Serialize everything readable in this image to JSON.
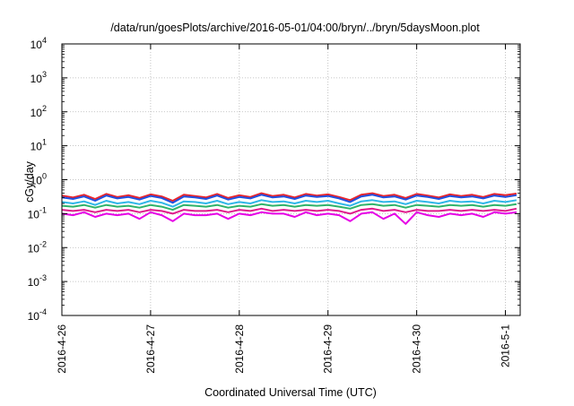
{
  "chart_data": {
    "type": "line",
    "title": "/data/run/goesPlots/archive/2016-05-01/04:00/bryn/../bryn/5daysMoon.plot",
    "xlabel": "Coordinated Universal Time (UTC)",
    "ylabel": "cGy/day",
    "yscale": "log",
    "ylim": [
      0.0001,
      10000
    ],
    "xlim": [
      "2016-04-26",
      "2016-05-01T04:00"
    ],
    "grid": true,
    "legend": "none",
    "x_ticks": [
      "2016-4-26",
      "2016-4-27",
      "2016-4-28",
      "2016-4-29",
      "2016-4-30",
      "2016-5-1"
    ],
    "y_ticks": [
      {
        "base": "10",
        "exp": "-4"
      },
      {
        "base": "10",
        "exp": "-3"
      },
      {
        "base": "10",
        "exp": "-2"
      },
      {
        "base": "10",
        "exp": "-1"
      },
      {
        "base": "10",
        "exp": "0"
      },
      {
        "base": "10",
        "exp": "1"
      },
      {
        "base": "10",
        "exp": "2"
      },
      {
        "base": "10",
        "exp": "3"
      },
      {
        "base": "10",
        "exp": "4"
      }
    ],
    "x": [
      "2016-04-26T00:00",
      "2016-04-26T03:00",
      "2016-04-26T06:00",
      "2016-04-26T09:00",
      "2016-04-26T12:00",
      "2016-04-26T15:00",
      "2016-04-26T18:00",
      "2016-04-26T21:00",
      "2016-04-27T00:00",
      "2016-04-27T03:00",
      "2016-04-27T06:00",
      "2016-04-27T09:00",
      "2016-04-27T12:00",
      "2016-04-27T15:00",
      "2016-04-27T18:00",
      "2016-04-27T21:00",
      "2016-04-28T00:00",
      "2016-04-28T03:00",
      "2016-04-28T06:00",
      "2016-04-28T09:00",
      "2016-04-28T12:00",
      "2016-04-28T15:00",
      "2016-04-28T18:00",
      "2016-04-28T21:00",
      "2016-04-29T00:00",
      "2016-04-29T03:00",
      "2016-04-29T06:00",
      "2016-04-29T09:00",
      "2016-04-29T12:00",
      "2016-04-29T15:00",
      "2016-04-29T18:00",
      "2016-04-29T21:00",
      "2016-04-30T00:00",
      "2016-04-30T03:00",
      "2016-04-30T06:00",
      "2016-04-30T09:00",
      "2016-04-30T12:00",
      "2016-04-30T15:00",
      "2016-04-30T18:00",
      "2016-04-30T21:00",
      "2016-05-01T00:00",
      "2016-05-01T03:00"
    ],
    "series": [
      {
        "color": "#e8232b",
        "values": [
          0.34,
          0.3,
          0.36,
          0.27,
          0.38,
          0.31,
          0.35,
          0.29,
          0.37,
          0.32,
          0.24,
          0.36,
          0.33,
          0.3,
          0.38,
          0.29,
          0.35,
          0.31,
          0.4,
          0.33,
          0.36,
          0.3,
          0.38,
          0.34,
          0.37,
          0.31,
          0.25,
          0.36,
          0.4,
          0.33,
          0.36,
          0.29,
          0.38,
          0.34,
          0.3,
          0.37,
          0.33,
          0.36,
          0.31,
          0.38,
          0.35,
          0.39
        ]
      },
      {
        "color": "#1f4fe0",
        "values": [
          0.3,
          0.27,
          0.32,
          0.24,
          0.34,
          0.28,
          0.31,
          0.26,
          0.33,
          0.29,
          0.21,
          0.32,
          0.3,
          0.27,
          0.34,
          0.26,
          0.31,
          0.28,
          0.36,
          0.3,
          0.32,
          0.27,
          0.34,
          0.31,
          0.33,
          0.28,
          0.22,
          0.32,
          0.36,
          0.3,
          0.32,
          0.26,
          0.34,
          0.31,
          0.27,
          0.33,
          0.3,
          0.32,
          0.28,
          0.34,
          0.31,
          0.35
        ]
      },
      {
        "color": "#2fb6e8",
        "values": [
          0.22,
          0.2,
          0.23,
          0.18,
          0.24,
          0.2,
          0.22,
          0.19,
          0.24,
          0.21,
          0.16,
          0.23,
          0.22,
          0.2,
          0.24,
          0.19,
          0.22,
          0.2,
          0.25,
          0.22,
          0.23,
          0.2,
          0.24,
          0.22,
          0.24,
          0.2,
          0.17,
          0.23,
          0.25,
          0.22,
          0.23,
          0.19,
          0.24,
          0.22,
          0.2,
          0.24,
          0.22,
          0.23,
          0.2,
          0.24,
          0.22,
          0.25
        ]
      },
      {
        "color": "#2fb36a",
        "values": [
          0.17,
          0.16,
          0.18,
          0.15,
          0.18,
          0.16,
          0.17,
          0.15,
          0.18,
          0.16,
          0.13,
          0.18,
          0.17,
          0.16,
          0.18,
          0.15,
          0.17,
          0.16,
          0.19,
          0.17,
          0.18,
          0.16,
          0.18,
          0.17,
          0.18,
          0.16,
          0.14,
          0.18,
          0.19,
          0.17,
          0.18,
          0.15,
          0.18,
          0.17,
          0.16,
          0.18,
          0.17,
          0.18,
          0.16,
          0.18,
          0.17,
          0.19
        ]
      },
      {
        "color": "#e0198c",
        "values": [
          0.13,
          0.12,
          0.13,
          0.11,
          0.13,
          0.12,
          0.13,
          0.11,
          0.13,
          0.12,
          0.1,
          0.13,
          0.12,
          0.12,
          0.13,
          0.11,
          0.13,
          0.12,
          0.14,
          0.12,
          0.13,
          0.12,
          0.13,
          0.12,
          0.13,
          0.12,
          0.1,
          0.13,
          0.14,
          0.12,
          0.13,
          0.11,
          0.13,
          0.12,
          0.12,
          0.13,
          0.12,
          0.13,
          0.12,
          0.13,
          0.12,
          0.14
        ]
      },
      {
        "color": "#e600e6",
        "values": [
          0.1,
          0.09,
          0.11,
          0.08,
          0.1,
          0.09,
          0.1,
          0.07,
          0.11,
          0.09,
          0.06,
          0.1,
          0.09,
          0.09,
          0.1,
          0.07,
          0.1,
          0.09,
          0.11,
          0.1,
          0.1,
          0.08,
          0.11,
          0.09,
          0.1,
          0.09,
          0.06,
          0.1,
          0.11,
          0.07,
          0.1,
          0.05,
          0.11,
          0.09,
          0.08,
          0.1,
          0.09,
          0.1,
          0.08,
          0.11,
          0.1,
          0.11
        ]
      }
    ]
  }
}
